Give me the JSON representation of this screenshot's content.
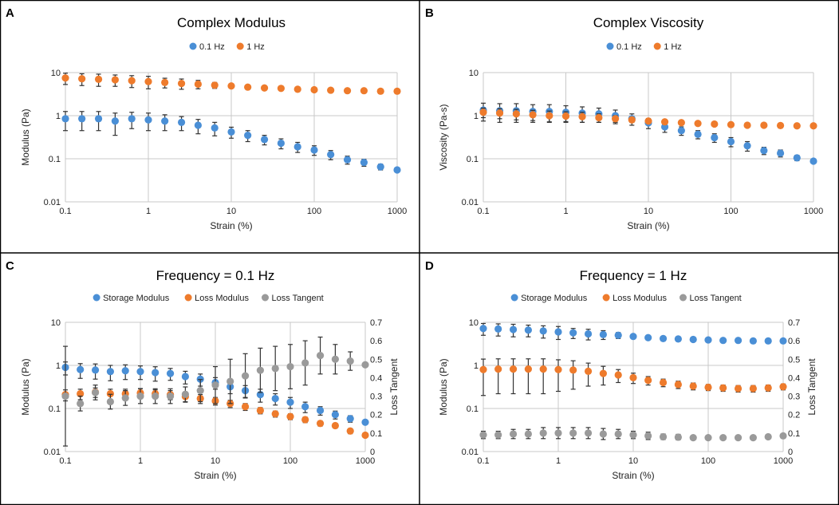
{
  "colors": {
    "blue": "#4a8fd6",
    "orange": "#ee7b2c",
    "gray": "#9a9a9a",
    "grid": "#c8c8c8",
    "errorbar": "#333333",
    "border": "#000000"
  },
  "chart_data": [
    {
      "type": "scatter",
      "panel": "A",
      "title": "Complex Modulus",
      "xlabel": "Strain (%)",
      "ylabel": "Modulus (Pa)",
      "xscale": "log",
      "yscale": "log",
      "xlim": [
        0.1,
        1000
      ],
      "ylim": [
        0.01,
        10
      ],
      "xticks": [
        "0.1",
        "1",
        "10",
        "100",
        "1000"
      ],
      "yticks": [
        "0.01",
        "0.1",
        "1",
        "10"
      ],
      "legend": [
        "0.1 Hz",
        "1 Hz"
      ],
      "legend_position": "top-center",
      "x": [
        0.1,
        0.158,
        0.251,
        0.398,
        0.631,
        1,
        1.58,
        2.51,
        3.98,
        6.31,
        10,
        15.8,
        25.1,
        39.8,
        63.1,
        100,
        158,
        251,
        398,
        631,
        1000
      ],
      "series": [
        {
          "name": "0.1 Hz",
          "color": "blue",
          "axis": "left",
          "values": [
            0.85,
            0.85,
            0.85,
            0.75,
            0.85,
            0.8,
            0.75,
            0.7,
            0.6,
            0.52,
            0.42,
            0.35,
            0.28,
            0.23,
            0.19,
            0.16,
            0.125,
            0.095,
            0.082,
            0.065,
            0.055
          ],
          "err_up": [
            0.4,
            0.4,
            0.4,
            0.4,
            0.35,
            0.35,
            0.3,
            0.25,
            0.22,
            0.18,
            0.12,
            0.1,
            0.07,
            0.06,
            0.05,
            0.04,
            0.03,
            0.02,
            0.015,
            0.01,
            0
          ],
          "err_down": [
            0.4,
            0.4,
            0.4,
            0.4,
            0.35,
            0.35,
            0.3,
            0.25,
            0.22,
            0.18,
            0.12,
            0.1,
            0.07,
            0.06,
            0.05,
            0.04,
            0.03,
            0.02,
            0.015,
            0.01,
            0
          ]
        },
        {
          "name": "1 Hz",
          "color": "orange",
          "axis": "left",
          "values": [
            7.5,
            7.2,
            7.0,
            6.8,
            6.5,
            6.2,
            5.9,
            5.6,
            5.4,
            5.1,
            4.9,
            4.6,
            4.4,
            4.3,
            4.1,
            4.0,
            3.9,
            3.8,
            3.8,
            3.7,
            3.7
          ],
          "err_up": [
            2.2,
            2.2,
            2.2,
            2.0,
            2.0,
            2.0,
            1.5,
            1.5,
            1.2,
            0.8,
            0,
            0,
            0,
            0,
            0,
            0,
            0,
            0,
            0,
            0,
            0
          ],
          "err_down": [
            2.2,
            2.2,
            2.2,
            2.0,
            2.0,
            2.0,
            1.5,
            1.5,
            1.2,
            0.8,
            0,
            0,
            0,
            0,
            0,
            0,
            0,
            0,
            0,
            0,
            0
          ]
        }
      ]
    },
    {
      "type": "scatter",
      "panel": "B",
      "title": "Complex Viscosity",
      "xlabel": "Strain (%)",
      "ylabel": "Viscosity (Pa-s)",
      "xscale": "log",
      "yscale": "log",
      "xlim": [
        0.1,
        1000
      ],
      "ylim": [
        0.01,
        10
      ],
      "xticks": [
        "0.1",
        "1",
        "10",
        "100",
        "1000"
      ],
      "yticks": [
        "0.01",
        "0.1",
        "1",
        "10"
      ],
      "legend": [
        "0.1 Hz",
        "1 Hz"
      ],
      "legend_position": "top-center",
      "x": [
        0.1,
        0.158,
        0.251,
        0.398,
        0.631,
        1,
        1.58,
        2.51,
        3.98,
        6.31,
        10,
        15.8,
        25.1,
        39.8,
        63.1,
        100,
        158,
        251,
        398,
        631,
        1000
      ],
      "series": [
        {
          "name": "0.1 Hz",
          "color": "blue",
          "axis": "left",
          "values": [
            1.35,
            1.3,
            1.3,
            1.25,
            1.25,
            1.2,
            1.15,
            1.1,
            1.0,
            0.85,
            0.68,
            0.55,
            0.45,
            0.37,
            0.31,
            0.25,
            0.2,
            0.155,
            0.135,
            0.105,
            0.088
          ],
          "err_up": [
            0.6,
            0.6,
            0.6,
            0.55,
            0.55,
            0.5,
            0.45,
            0.4,
            0.35,
            0.25,
            0.18,
            0.14,
            0.1,
            0.08,
            0.07,
            0.06,
            0.05,
            0.03,
            0.025,
            0.015,
            0
          ],
          "err_down": [
            0.6,
            0.6,
            0.6,
            0.55,
            0.55,
            0.5,
            0.45,
            0.4,
            0.35,
            0.25,
            0.18,
            0.14,
            0.1,
            0.08,
            0.07,
            0.06,
            0.05,
            0.03,
            0.025,
            0.015,
            0
          ]
        },
        {
          "name": "1 Hz",
          "color": "orange",
          "axis": "left",
          "values": [
            1.2,
            1.15,
            1.1,
            1.05,
            1.0,
            0.98,
            0.95,
            0.9,
            0.85,
            0.8,
            0.75,
            0.72,
            0.69,
            0.66,
            0.64,
            0.62,
            0.6,
            0.6,
            0.59,
            0.58,
            0.58
          ],
          "err_up": [
            0.3,
            0.3,
            0.3,
            0.28,
            0.28,
            0.25,
            0.25,
            0.2,
            0.15,
            0.1,
            0,
            0,
            0,
            0,
            0,
            0,
            0,
            0,
            0,
            0,
            0
          ],
          "err_down": [
            0.3,
            0.3,
            0.3,
            0.28,
            0.28,
            0.25,
            0.25,
            0.2,
            0.15,
            0.1,
            0,
            0,
            0,
            0,
            0,
            0,
            0,
            0,
            0,
            0,
            0
          ]
        }
      ]
    },
    {
      "type": "scatter",
      "panel": "C",
      "title": "Frequency = 0.1 Hz",
      "xlabel": "Strain (%)",
      "ylabel": "Modulus (Pa)",
      "y2label": "Loss Tangent",
      "xscale": "log",
      "yscale": "log",
      "xlim": [
        0.1,
        1000
      ],
      "ylim": [
        0.01,
        10
      ],
      "y2lim": [
        0,
        0.7
      ],
      "xticks": [
        "0.1",
        "1",
        "10",
        "100",
        "1000"
      ],
      "yticks": [
        "0.01",
        "0.1",
        "1",
        "10"
      ],
      "y2ticks": [
        "0",
        "0.1",
        "0.2",
        "0.3",
        "0.4",
        "0.5",
        "0.6",
        "0.7"
      ],
      "legend": [
        "Storage Modulus",
        "Loss Modulus",
        "Loss Tangent"
      ],
      "legend_position": "top-center",
      "x": [
        0.1,
        0.158,
        0.251,
        0.398,
        0.631,
        1,
        1.58,
        2.51,
        3.98,
        6.31,
        10,
        15.8,
        25.1,
        39.8,
        63.1,
        100,
        158,
        251,
        398,
        631,
        1000
      ],
      "series": [
        {
          "name": "Storage Modulus",
          "color": "blue",
          "axis": "left",
          "values": [
            0.9,
            0.8,
            0.78,
            0.72,
            0.75,
            0.72,
            0.68,
            0.65,
            0.55,
            0.48,
            0.4,
            0.32,
            0.26,
            0.21,
            0.17,
            0.14,
            0.11,
            0.09,
            0.072,
            0.058,
            0.048
          ],
          "err_up": [
            0.3,
            0.3,
            0.3,
            0.28,
            0.28,
            0.25,
            0.25,
            0.2,
            0.18,
            0.15,
            0.12,
            0.1,
            0.08,
            0.07,
            0.05,
            0.04,
            0.03,
            0.02,
            0.015,
            0.01,
            0
          ],
          "err_down": [
            0.3,
            0.3,
            0.3,
            0.28,
            0.28,
            0.25,
            0.25,
            0.2,
            0.18,
            0.15,
            0.12,
            0.1,
            0.08,
            0.07,
            0.05,
            0.04,
            0.03,
            0.02,
            0.015,
            0.01,
            0
          ]
        },
        {
          "name": "Loss Modulus",
          "color": "orange",
          "axis": "left",
          "values": [
            0.21,
            0.22,
            0.24,
            0.22,
            0.22,
            0.23,
            0.22,
            0.21,
            0.19,
            0.17,
            0.15,
            0.13,
            0.11,
            0.09,
            0.075,
            0.065,
            0.055,
            0.045,
            0.04,
            0.03,
            0.024
          ],
          "err_up": [
            0.06,
            0.06,
            0.06,
            0.06,
            0.06,
            0.06,
            0.05,
            0.05,
            0.05,
            0.04,
            0.03,
            0.025,
            0.02,
            0.015,
            0.012,
            0.01,
            0.008,
            0.006,
            0.005,
            0.004,
            0
          ],
          "err_down": [
            0.06,
            0.06,
            0.06,
            0.06,
            0.06,
            0.06,
            0.05,
            0.05,
            0.05,
            0.04,
            0.03,
            0.025,
            0.02,
            0.015,
            0.012,
            0.01,
            0.008,
            0.006,
            0.005,
            0.004,
            0
          ]
        },
        {
          "name": "Loss Tangent",
          "color": "gray",
          "axis": "right",
          "values": [
            0.3,
            0.26,
            0.32,
            0.27,
            0.29,
            0.3,
            0.3,
            0.3,
            0.31,
            0.33,
            0.36,
            0.38,
            0.41,
            0.44,
            0.45,
            0.46,
            0.48,
            0.52,
            0.5,
            0.49,
            0.47
          ],
          "err_up": [
            0.27,
            0.04,
            0.04,
            0.04,
            0.04,
            0.04,
            0.04,
            0.04,
            0.04,
            0.06,
            0.1,
            0.12,
            0.12,
            0.12,
            0.12,
            0.12,
            0.12,
            0.1,
            0.08,
            0.05,
            0
          ],
          "err_down": [
            0.27,
            0.04,
            0.04,
            0.04,
            0.04,
            0.04,
            0.04,
            0.04,
            0.04,
            0.06,
            0.1,
            0.12,
            0.12,
            0.12,
            0.12,
            0.12,
            0.12,
            0.1,
            0.08,
            0.05,
            0
          ]
        }
      ]
    },
    {
      "type": "scatter",
      "panel": "D",
      "title": "Frequency = 1 Hz",
      "xlabel": "Strain (%)",
      "ylabel": "Modulus (Pa)",
      "y2label": "Loss Tangent",
      "xscale": "log",
      "yscale": "log",
      "xlim": [
        0.1,
        1000
      ],
      "ylim": [
        0.01,
        10
      ],
      "y2lim": [
        0,
        0.7
      ],
      "xticks": [
        "0.1",
        "1",
        "10",
        "100",
        "1000"
      ],
      "yticks": [
        "0.01",
        "0.1",
        "1",
        "10"
      ],
      "y2ticks": [
        "0",
        "0.1",
        "0.2",
        "0.3",
        "0.4",
        "0.5",
        "0.6",
        "0.7"
      ],
      "legend": [
        "Storage Modulus",
        "Loss Modulus",
        "Loss Tangent"
      ],
      "legend_position": "top-center",
      "x": [
        0.1,
        0.158,
        0.251,
        0.398,
        0.631,
        1,
        1.58,
        2.51,
        3.98,
        6.31,
        10,
        15.8,
        25.1,
        39.8,
        63.1,
        100,
        158,
        251,
        398,
        631,
        1000
      ],
      "series": [
        {
          "name": "Storage Modulus",
          "color": "blue",
          "axis": "left",
          "values": [
            7.2,
            7.0,
            6.8,
            6.6,
            6.3,
            6.0,
            5.7,
            5.4,
            5.2,
            5.0,
            4.7,
            4.4,
            4.2,
            4.1,
            4.0,
            3.9,
            3.8,
            3.8,
            3.7,
            3.7,
            3.7
          ],
          "err_up": [
            2.2,
            2.2,
            2.2,
            2.0,
            2.0,
            2.0,
            1.5,
            1.5,
            1.2,
            0.8,
            0,
            0,
            0,
            0,
            0,
            0,
            0,
            0,
            0,
            0,
            0
          ],
          "err_down": [
            2.2,
            2.2,
            2.2,
            2.0,
            2.0,
            2.0,
            1.5,
            1.5,
            1.2,
            0.8,
            0,
            0,
            0,
            0,
            0,
            0,
            0,
            0,
            0,
            0,
            0
          ]
        },
        {
          "name": "Loss Modulus",
          "color": "orange",
          "axis": "left",
          "values": [
            0.8,
            0.82,
            0.82,
            0.82,
            0.82,
            0.8,
            0.78,
            0.73,
            0.65,
            0.6,
            0.52,
            0.45,
            0.4,
            0.36,
            0.33,
            0.31,
            0.3,
            0.29,
            0.29,
            0.3,
            0.32
          ],
          "err_up": [
            0.6,
            0.6,
            0.6,
            0.6,
            0.6,
            0.55,
            0.5,
            0.4,
            0.3,
            0.2,
            0.14,
            0.1,
            0.08,
            0.07,
            0.06,
            0.05,
            0.05,
            0.05,
            0.05,
            0.05,
            0.05
          ],
          "err_down": [
            0.6,
            0.6,
            0.6,
            0.6,
            0.6,
            0.55,
            0.5,
            0.4,
            0.3,
            0.2,
            0.14,
            0.1,
            0.08,
            0.07,
            0.06,
            0.05,
            0.05,
            0.05,
            0.05,
            0.05,
            0.05
          ]
        },
        {
          "name": "Loss Tangent",
          "color": "gray",
          "axis": "right",
          "values": [
            0.09,
            0.09,
            0.095,
            0.095,
            0.1,
            0.1,
            0.1,
            0.1,
            0.095,
            0.095,
            0.09,
            0.085,
            0.08,
            0.078,
            0.075,
            0.075,
            0.075,
            0.075,
            0.075,
            0.08,
            0.085
          ],
          "err_up": [
            0.02,
            0.02,
            0.025,
            0.025,
            0.03,
            0.03,
            0.03,
            0.03,
            0.03,
            0.025,
            0.02,
            0.02,
            0.015,
            0.015,
            0.01,
            0.01,
            0.01,
            0.01,
            0.01,
            0.01,
            0.01
          ],
          "err_down": [
            0.02,
            0.02,
            0.025,
            0.025,
            0.03,
            0.03,
            0.03,
            0.03,
            0.03,
            0.025,
            0.02,
            0.02,
            0.015,
            0.015,
            0.01,
            0.01,
            0.01,
            0.01,
            0.01,
            0.01,
            0.01
          ]
        }
      ]
    }
  ]
}
